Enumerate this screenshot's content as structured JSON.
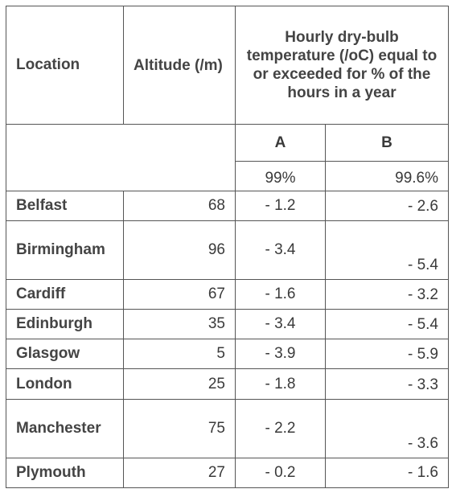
{
  "header": {
    "location": "Location",
    "altitude": "Altitude (/m)",
    "temperature": "Hourly dry-bulb temperature (/oC) equal to or exceeded for % of the hours in a year",
    "col_a": "A",
    "col_b": "B",
    "pct_a": "99%",
    "pct_b": "99.6%"
  },
  "rows": [
    {
      "location": "Belfast",
      "altitude": "68",
      "a": "- 1.2",
      "b": "- 2.6"
    },
    {
      "location": "Birmingham",
      "altitude": "96",
      "a": "- 3.4",
      "b": "- 5.4"
    },
    {
      "location": "Cardiff",
      "altitude": "67",
      "a": "- 1.6",
      "b": "- 3.2"
    },
    {
      "location": "Edinburgh",
      "altitude": "35",
      "a": "- 3.4",
      "b": "- 5.4"
    },
    {
      "location": "Glasgow",
      "altitude": "5",
      "a": "- 3.9",
      "b": "- 5.9"
    },
    {
      "location": "London",
      "altitude": "25",
      "a": "- 1.8",
      "b": "- 3.3"
    },
    {
      "location": "Manchester",
      "altitude": "75",
      "a": "- 2.2",
      "b": "- 3.6"
    },
    {
      "location": "Plymouth",
      "altitude": "27",
      "a": "- 0.2",
      "b": "- 1.6"
    }
  ]
}
